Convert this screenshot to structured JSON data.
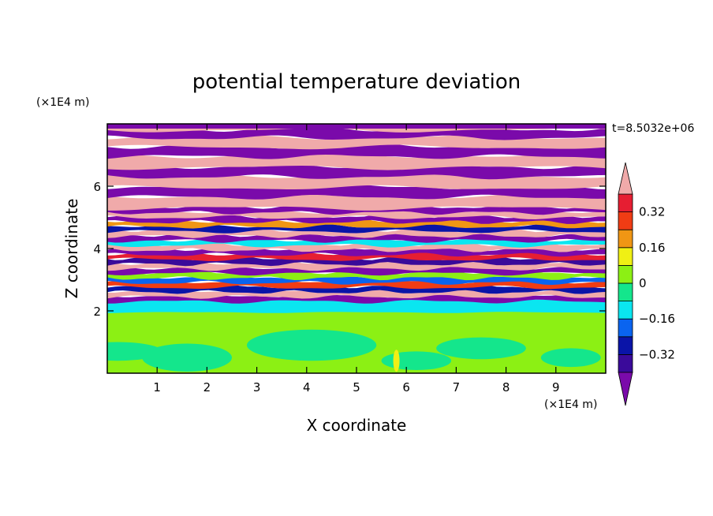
{
  "chart_data": {
    "type": "heatmap",
    "title": "potential temperature deviation",
    "xlabel": "X coordinate",
    "ylabel": "Z coordinate",
    "x_unit": "(×1E4 m)",
    "y_unit": "(×1E4 m)",
    "time_label": "t=8.5032e+06",
    "xlim": [
      0,
      10
    ],
    "ylim": [
      0,
      8
    ],
    "x_ticks": [
      1,
      2,
      3,
      4,
      5,
      6,
      7,
      8,
      9
    ],
    "y_ticks": [
      2,
      4,
      6
    ],
    "colorbar": {
      "levels": [
        -0.4,
        -0.32,
        -0.24,
        -0.16,
        -0.08,
        0,
        0.08,
        0.16,
        0.24,
        0.32,
        0.4
      ],
      "labels": [
        "0.32",
        "0.16",
        "0",
        "−0.16",
        "−0.32"
      ],
      "label_values": [
        0.32,
        0.16,
        0,
        -0.16,
        -0.32
      ],
      "colors": [
        "#7a0aaa",
        "#3a0a9a",
        "#0a14a8",
        "#0a64f0",
        "#0ae6f0",
        "#14e68c",
        "#8cf014",
        "#f0f014",
        "#f09614",
        "#f03c14",
        "#e61e32",
        "#f0aaaa"
      ],
      "extend": "both"
    }
  }
}
